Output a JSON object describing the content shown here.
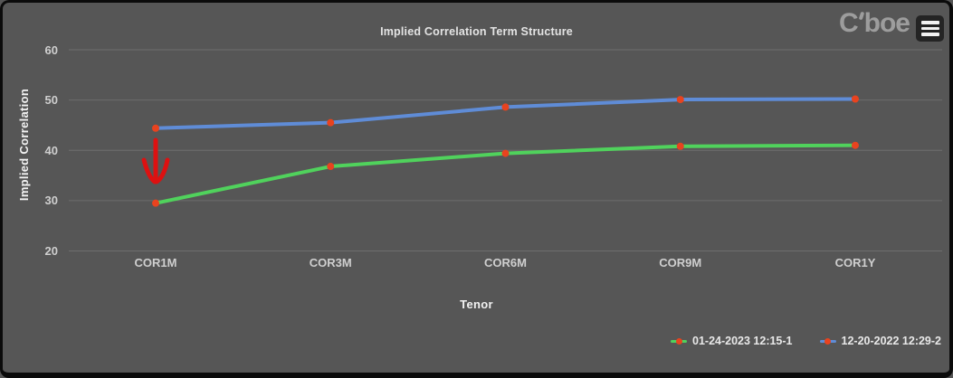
{
  "header": {
    "brand_prefix": "C",
    "brand_suffix": "boe",
    "menu_button_label": "chart menu"
  },
  "chart_data": {
    "type": "line",
    "title": "Implied Correlation Term Structure",
    "xlabel": "Tenor",
    "ylabel": "Implied Correlation",
    "categories": [
      "COR1M",
      "COR3M",
      "COR6M",
      "COR9M",
      "COR1Y"
    ],
    "yticks": [
      60,
      50,
      40,
      30,
      20
    ],
    "ylim": [
      20,
      60
    ],
    "grid": true,
    "legend_position": "bottom-right",
    "series": [
      {
        "name": "01-24-2023 12:15-1",
        "color": "#50d25c",
        "marker_color": "#e8431f",
        "values": [
          29.5,
          36.8,
          39.4,
          40.8,
          41.0
        ]
      },
      {
        "name": "12-20-2022 12:29-2",
        "color": "#5f8cd7",
        "marker_color": "#e8431f",
        "values": [
          44.4,
          45.5,
          48.6,
          50.1,
          50.2
        ]
      }
    ],
    "annotation": {
      "shape": "down-arrow",
      "color": "#dd1111",
      "at_category": "COR1M"
    }
  },
  "colors": {
    "background": "#565656",
    "border": "#0b0b0b",
    "gridline": "#6e6e6e",
    "tick_text": "#cfcfcf",
    "title_text": "#e4e4e4",
    "brand_text": "#9d9d9d"
  }
}
